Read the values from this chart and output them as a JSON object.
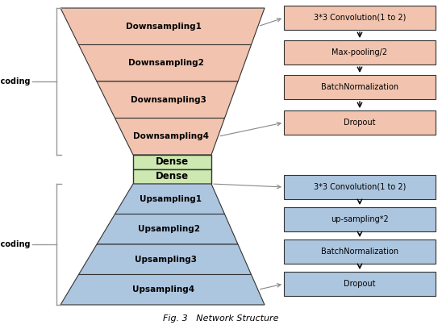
{
  "fig_width": 5.48,
  "fig_height": 4.08,
  "dpi": 100,
  "bg_color": "#ffffff",
  "encoding_color": "#f2c4af",
  "dense_color": "#cde8b0",
  "decoding_color": "#adc6e0",
  "box_edge_color": "#333333",
  "arrow_color": "#888888",
  "right_box_enc_color": "#f2c4af",
  "right_box_dec_color": "#adc6e0",
  "encoding_layers": [
    "Downsampling1",
    "Downsampling2",
    "Downsampling3",
    "Downsampling4"
  ],
  "dense_layers": [
    "Dense",
    "Dense"
  ],
  "decoding_layers": [
    "Upsampling1",
    "Upsampling2",
    "Upsampling3",
    "Upsampling4"
  ],
  "enc_right_labels": [
    "3*3 Convolution(1 to 2)",
    "Max-pooling/2",
    "BatchNormalization",
    "Dropout"
  ],
  "dec_right_labels": [
    "3*3 Convolution(1 to 2)",
    "up-sampling*2",
    "BatchNormalization",
    "Dropout"
  ],
  "caption": "Fig. 3   Network Structure"
}
